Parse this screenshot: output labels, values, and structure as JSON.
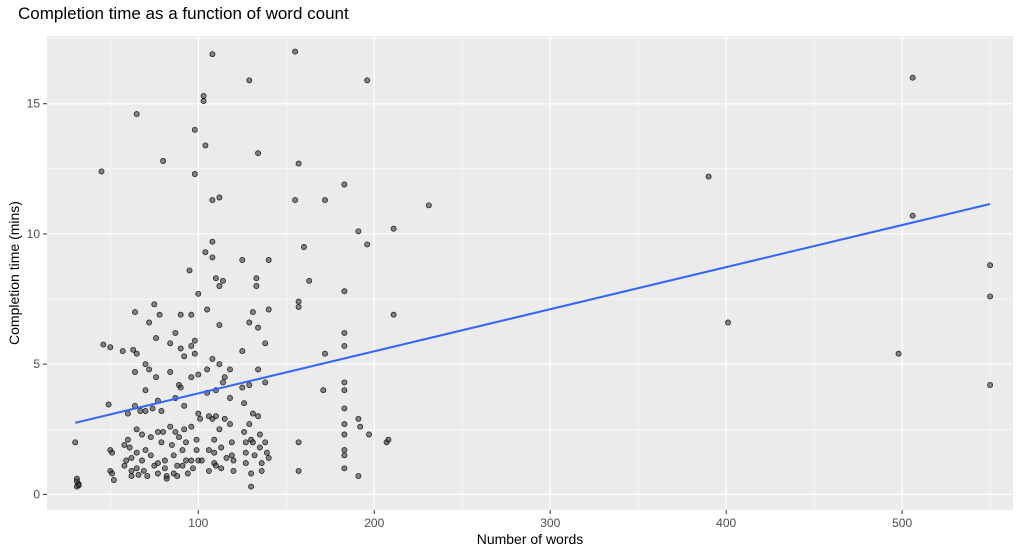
{
  "chart_data": {
    "type": "scatter",
    "title": "Completion time as a function of word count",
    "xlabel": "Number of words",
    "ylabel": "Completion time (mins)",
    "xlim": [
      14,
      563
    ],
    "ylim": [
      -0.6,
      17.6
    ],
    "x_ticks": [
      100,
      200,
      300,
      400,
      500
    ],
    "y_ticks": [
      0,
      5,
      10,
      15
    ],
    "x_tick_labels": [
      "100",
      "200",
      "300",
      "400",
      "500"
    ],
    "y_tick_labels": [
      "0",
      "5",
      "10",
      "15"
    ],
    "grid": true,
    "panel_background": "#ebebeb",
    "point_color": "#3a3a3a",
    "trend_line": {
      "color": "#3366ff",
      "x": [
        30,
        550
      ],
      "y": [
        2.75,
        11.15
      ]
    },
    "points": [
      [
        30,
        2.0
      ],
      [
        31,
        0.6
      ],
      [
        31,
        0.5
      ],
      [
        32,
        0.4
      ],
      [
        31,
        0.3
      ],
      [
        32,
        0.35
      ],
      [
        45,
        12.4
      ],
      [
        46,
        5.75
      ],
      [
        50,
        5.65
      ],
      [
        49,
        3.45
      ],
      [
        50,
        1.7
      ],
      [
        51,
        1.6
      ],
      [
        50,
        0.9
      ],
      [
        51,
        0.8
      ],
      [
        52,
        0.55
      ],
      [
        57,
        5.5
      ],
      [
        58,
        1.9
      ],
      [
        58,
        1.1
      ],
      [
        59,
        1.3
      ],
      [
        60,
        3.1
      ],
      [
        60,
        2.1
      ],
      [
        61,
        1.8
      ],
      [
        62,
        1.4
      ],
      [
        62,
        0.9
      ],
      [
        62,
        0.7
      ],
      [
        63,
        5.55
      ],
      [
        64,
        7.0
      ],
      [
        64,
        4.7
      ],
      [
        64,
        3.4
      ],
      [
        65,
        14.6
      ],
      [
        65,
        5.4
      ],
      [
        65,
        2.5
      ],
      [
        65,
        1.6
      ],
      [
        65,
        1.0
      ],
      [
        66,
        0.75
      ],
      [
        67,
        3.2
      ],
      [
        68,
        2.3
      ],
      [
        68,
        1.3
      ],
      [
        69,
        0.9
      ],
      [
        70,
        5.0
      ],
      [
        70,
        4.0
      ],
      [
        70,
        3.2
      ],
      [
        70,
        1.7
      ],
      [
        71,
        0.7
      ],
      [
        72,
        6.6
      ],
      [
        72,
        4.8
      ],
      [
        73,
        2.2
      ],
      [
        73,
        1.5
      ],
      [
        74,
        3.3
      ],
      [
        75,
        7.3
      ],
      [
        75,
        1.1
      ],
      [
        76,
        6.0
      ],
      [
        76,
        4.5
      ],
      [
        77,
        3.6
      ],
      [
        77,
        2.4
      ],
      [
        77,
        1.2
      ],
      [
        77,
        0.8
      ],
      [
        78,
        6.9
      ],
      [
        79,
        3.2
      ],
      [
        79,
        2.0
      ],
      [
        80,
        12.8
      ],
      [
        80,
        2.4
      ],
      [
        81,
        1.3
      ],
      [
        81,
        1.0
      ],
      [
        82,
        0.7
      ],
      [
        82,
        0.6
      ],
      [
        84,
        5.8
      ],
      [
        84,
        4.7
      ],
      [
        84,
        2.6
      ],
      [
        85,
        1.9
      ],
      [
        86,
        1.5
      ],
      [
        86,
        0.8
      ],
      [
        87,
        6.2
      ],
      [
        87,
        3.7
      ],
      [
        87,
        2.4
      ],
      [
        88,
        1.1
      ],
      [
        88,
        0.7
      ],
      [
        89,
        4.2
      ],
      [
        89,
        2.2
      ],
      [
        90,
        6.9
      ],
      [
        90,
        5.6
      ],
      [
        90,
        4.1
      ],
      [
        91,
        1.7
      ],
      [
        91,
        1.1
      ],
      [
        92,
        5.3
      ],
      [
        92,
        3.4
      ],
      [
        92,
        2.5
      ],
      [
        93,
        2.0
      ],
      [
        93,
        1.3
      ],
      [
        94,
        0.8
      ],
      [
        95,
        8.6
      ],
      [
        96,
        6.9
      ],
      [
        96,
        5.7
      ],
      [
        96,
        4.5
      ],
      [
        96,
        2.6
      ],
      [
        96,
        1.3
      ],
      [
        97,
        1.0
      ],
      [
        98,
        12.3
      ],
      [
        98,
        14.0
      ],
      [
        98,
        5.4
      ],
      [
        98,
        5.9
      ],
      [
        99,
        2.1
      ],
      [
        99,
        1.7
      ],
      [
        100,
        7.7
      ],
      [
        100,
        4.6
      ],
      [
        100,
        3.1
      ],
      [
        100,
        1.3
      ],
      [
        101,
        2.9
      ],
      [
        102,
        1.3
      ],
      [
        103,
        15.3
      ],
      [
        103,
        15.1
      ],
      [
        104,
        13.4
      ],
      [
        104,
        9.3
      ],
      [
        105,
        7.1
      ],
      [
        105,
        4.8
      ],
      [
        105,
        3.9
      ],
      [
        106,
        3.0
      ],
      [
        106,
        1.7
      ],
      [
        106,
        0.9
      ],
      [
        108,
        16.9
      ],
      [
        108,
        11.3
      ],
      [
        108,
        9.7
      ],
      [
        108,
        9.1
      ],
      [
        108,
        5.2
      ],
      [
        108,
        2.9
      ],
      [
        109,
        2.1
      ],
      [
        109,
        1.6
      ],
      [
        109,
        1.2
      ],
      [
        110,
        8.3
      ],
      [
        110,
        4.0
      ],
      [
        110,
        3.0
      ],
      [
        110,
        1.1
      ],
      [
        112,
        11.4
      ],
      [
        112,
        8.0
      ],
      [
        112,
        6.5
      ],
      [
        112,
        5.0
      ],
      [
        112,
        2.5
      ],
      [
        113,
        1.8
      ],
      [
        113,
        1.0
      ],
      [
        114,
        8.2
      ],
      [
        114,
        4.3
      ],
      [
        115,
        4.5
      ],
      [
        115,
        2.9
      ],
      [
        116,
        1.4
      ],
      [
        118,
        4.8
      ],
      [
        118,
        3.7
      ],
      [
        118,
        2.7
      ],
      [
        119,
        2.0
      ],
      [
        119,
        1.5
      ],
      [
        120,
        1.3
      ],
      [
        120,
        0.9
      ],
      [
        125,
        9.0
      ],
      [
        125,
        5.5
      ],
      [
        125,
        4.1
      ],
      [
        126,
        3.5
      ],
      [
        126,
        2.4
      ],
      [
        127,
        2.0
      ],
      [
        127,
        1.6
      ],
      [
        127,
        1.2
      ],
      [
        129,
        15.9
      ],
      [
        129,
        6.6
      ],
      [
        129,
        4.2
      ],
      [
        129,
        2.7
      ],
      [
        130,
        2.1
      ],
      [
        130,
        0.8
      ],
      [
        130,
        0.3
      ],
      [
        131,
        7.0
      ],
      [
        131,
        3.1
      ],
      [
        131,
        2.0
      ],
      [
        132,
        1.5
      ],
      [
        133,
        8.3
      ],
      [
        133,
        8.0
      ],
      [
        134,
        13.1
      ],
      [
        134,
        6.4
      ],
      [
        134,
        4.8
      ],
      [
        134,
        3.0
      ],
      [
        135,
        2.3
      ],
      [
        135,
        1.8
      ],
      [
        136,
        1.2
      ],
      [
        136,
        0.9
      ],
      [
        138,
        5.8
      ],
      [
        138,
        4.3
      ],
      [
        138,
        2.0
      ],
      [
        139,
        1.6
      ],
      [
        140,
        9.0
      ],
      [
        140,
        7.1
      ],
      [
        140,
        1.4
      ],
      [
        155,
        17.0
      ],
      [
        155,
        11.3
      ],
      [
        157,
        12.7
      ],
      [
        157,
        7.4
      ],
      [
        157,
        7.2
      ],
      [
        157,
        2.0
      ],
      [
        157,
        0.9
      ],
      [
        160,
        9.5
      ],
      [
        163,
        8.2
      ],
      [
        171,
        4.0
      ],
      [
        172,
        11.3
      ],
      [
        172,
        5.4
      ],
      [
        183,
        11.9
      ],
      [
        183,
        7.8
      ],
      [
        183,
        6.2
      ],
      [
        183,
        5.7
      ],
      [
        183,
        4.3
      ],
      [
        183,
        4.0
      ],
      [
        183,
        3.3
      ],
      [
        183,
        2.7
      ],
      [
        183,
        2.3
      ],
      [
        183,
        1.7
      ],
      [
        183,
        1.5
      ],
      [
        183,
        1.0
      ],
      [
        191,
        10.1
      ],
      [
        191,
        2.9
      ],
      [
        191,
        0.7
      ],
      [
        192,
        2.6
      ],
      [
        196,
        9.6
      ],
      [
        196,
        15.9
      ],
      [
        197,
        2.3
      ],
      [
        207,
        2.0
      ],
      [
        208,
        2.1
      ],
      [
        211,
        10.2
      ],
      [
        211,
        6.9
      ],
      [
        231,
        11.1
      ],
      [
        390,
        12.2
      ],
      [
        401,
        6.6
      ],
      [
        498,
        5.4
      ],
      [
        506,
        16.0
      ],
      [
        506,
        10.7
      ],
      [
        550,
        8.8
      ],
      [
        550,
        7.6
      ],
      [
        550,
        4.2
      ]
    ]
  }
}
